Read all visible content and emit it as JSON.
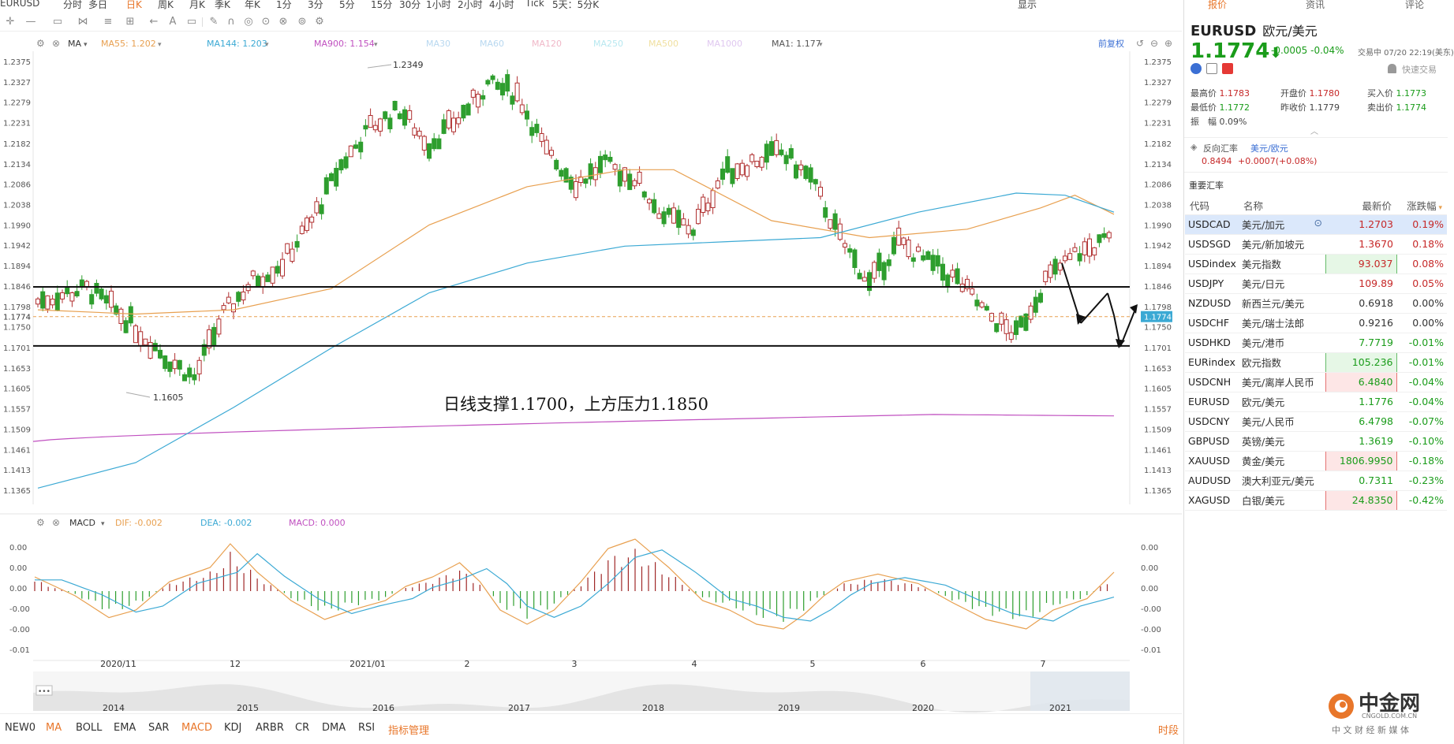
{
  "topbar": {
    "items": [
      "EURUSD",
      "分时",
      "多日",
      "日K",
      "周K",
      "月K",
      "季K",
      "年K",
      "1分",
      "3分",
      "5分",
      "15分",
      "30分",
      "1小时",
      "2小时",
      "4小时",
      "Tick",
      "5天：5分K"
    ],
    "right_items": [
      "显示",
      "报价",
      "资讯",
      "评论"
    ]
  },
  "chart": {
    "ma_label": "MA",
    "ma_legend": [
      {
        "label": "MA55: 1.202",
        "color": "#e8a050"
      },
      {
        "label": "MA144: 1.203",
        "color": "#3ba9d4"
      },
      {
        "label": "MA900: 1.154",
        "color": "#c050c0"
      },
      {
        "label": "MA30",
        "color": "#b8d8f0"
      },
      {
        "label": "MA60",
        "color": "#b8d8f0"
      },
      {
        "label": "MA120",
        "color": "#f0b8c8"
      },
      {
        "label": "MA250",
        "color": "#b8e8f0"
      },
      {
        "label": "MA500",
        "color": "#f0e0a0"
      },
      {
        "label": "MA1000",
        "color": "#e0c8f0"
      },
      {
        "label": "MA1: 1.177",
        "color": "#555555"
      }
    ],
    "adjust_label": "前复权",
    "price_ticks": [
      "1.2375",
      "1.2327",
      "1.2279",
      "1.2231",
      "1.2182",
      "1.2134",
      "1.2086",
      "1.2038",
      "1.1990",
      "1.1942",
      "1.1894",
      "1.1846",
      "1.1798",
      "1.1750",
      "1.1701",
      "1.1653",
      "1.1605",
      "1.1557",
      "1.1509",
      "1.1461",
      "1.1413",
      "1.1365"
    ],
    "current_price": "1.1774",
    "high_label": "1.2349",
    "low_label": "1.1605",
    "annotation": "日线支撑1.1700，上方压力1.1850",
    "macd_label": "MACD",
    "macd_legend": [
      {
        "label": "DIF: -0.002",
        "color": "#e8a050"
      },
      {
        "label": "DEA: -0.002",
        "color": "#3ba9d4"
      },
      {
        "label": "MACD: 0.000",
        "color": "#c050c0"
      }
    ],
    "macd_ticks": [
      "0.00",
      "0.00",
      "0.00",
      "-0.00",
      "-0.00",
      "-0.01"
    ],
    "time_labels": [
      "2020/11",
      "12",
      "2021/01",
      "2",
      "3",
      "4",
      "5",
      "6",
      "7"
    ],
    "year_labels": [
      "2014",
      "2015",
      "2016",
      "2017",
      "2018",
      "2019",
      "2020",
      "2021"
    ],
    "scroll_dots": "•••"
  },
  "indicators": {
    "items": [
      "NEW0",
      "MA",
      "BOLL",
      "EMA",
      "SAR",
      "MACD",
      "KDJ",
      "ARBR",
      "CR",
      "DMA",
      "RSI",
      "指标管理"
    ],
    "right": "时段"
  },
  "quote": {
    "symbol": "EURUSD",
    "name": "欧元/美元",
    "price": "1.1774",
    "arrow": "⬇",
    "change": "-0.0005 -0.04%",
    "trade_time": "交易中 07/20 22:19(美东)",
    "fast_trade": "快速交易",
    "stats": [
      {
        "label": "最高价",
        "value": "1.1783",
        "color": "red"
      },
      {
        "label": "开盘价",
        "value": "1.1780",
        "color": "red"
      },
      {
        "label": "买入价",
        "value": "1.1773",
        "color": "grn"
      },
      {
        "label": "最低价",
        "value": "1.1772",
        "color": "grn"
      },
      {
        "label": "昨收价",
        "value": "1.1779",
        "color": "none"
      },
      {
        "label": "卖出价",
        "value": "1.1774",
        "color": "grn"
      },
      {
        "label": "振　幅",
        "value": "0.09%",
        "color": "none"
      }
    ],
    "reverse_label": "反向汇率",
    "reverse_pair": "美元/欧元",
    "reverse_price": "0.8494",
    "reverse_change": "+0.0007(+0.08%)",
    "section_title": "重要汇率"
  },
  "rates_headers": {
    "code": "代码",
    "name": "名称",
    "last": "最新价",
    "pct": "涨跌幅"
  },
  "rates": [
    {
      "code": "USDCAD",
      "name": "美元/加元",
      "last": "1.2703",
      "pct": "0.19%",
      "dir": "up",
      "box": "none",
      "sel": true
    },
    {
      "code": "USDSGD",
      "name": "美元/新加坡元",
      "last": "1.3670",
      "pct": "0.18%",
      "dir": "up",
      "box": "none",
      "sel": false
    },
    {
      "code": "USDindex",
      "name": "美元指数",
      "last": "93.037",
      "pct": "0.08%",
      "dir": "up",
      "box": "g",
      "sel": false
    },
    {
      "code": "USDJPY",
      "name": "美元/日元",
      "last": "109.89",
      "pct": "0.05%",
      "dir": "up",
      "box": "none",
      "sel": false
    },
    {
      "code": "NZDUSD",
      "name": "新西兰元/美元",
      "last": "0.6918",
      "pct": "0.00%",
      "dir": "flat",
      "box": "none",
      "sel": false
    },
    {
      "code": "USDCHF",
      "name": "美元/瑞士法郎",
      "last": "0.9216",
      "pct": "0.00%",
      "dir": "flat",
      "box": "none",
      "sel": false
    },
    {
      "code": "USDHKD",
      "name": "美元/港币",
      "last": "7.7719",
      "pct": "-0.01%",
      "dir": "down",
      "box": "none",
      "sel": false
    },
    {
      "code": "EURindex",
      "name": "欧元指数",
      "last": "105.236",
      "pct": "-0.01%",
      "dir": "down",
      "box": "g",
      "sel": false
    },
    {
      "code": "USDCNH",
      "name": "美元/离岸人民币",
      "last": "6.4840",
      "pct": "-0.04%",
      "dir": "down",
      "box": "r",
      "sel": false
    },
    {
      "code": "EURUSD",
      "name": "欧元/美元",
      "last": "1.1776",
      "pct": "-0.04%",
      "dir": "down",
      "box": "none",
      "sel": false
    },
    {
      "code": "USDCNY",
      "name": "美元/人民币",
      "last": "6.4798",
      "pct": "-0.07%",
      "dir": "down",
      "box": "none",
      "sel": false
    },
    {
      "code": "GBPUSD",
      "name": "英镑/美元",
      "last": "1.3619",
      "pct": "-0.10%",
      "dir": "down",
      "box": "none",
      "sel": false
    },
    {
      "code": "XAUUSD",
      "name": "黄金/美元",
      "last": "1806.9950",
      "pct": "-0.18%",
      "dir": "down",
      "box": "r",
      "sel": false
    },
    {
      "code": "AUDUSD",
      "name": "澳大利亚元/美元",
      "last": "0.7311",
      "pct": "-0.23%",
      "dir": "down",
      "box": "none",
      "sel": false
    },
    {
      "code": "XAGUSD",
      "name": "白银/美元",
      "last": "24.8350",
      "pct": "-0.42%",
      "dir": "down",
      "box": "r",
      "sel": false
    }
  ],
  "logo": {
    "name": "中金网",
    "url": "CNGOLD.COM.CN",
    "slogan": "中 文 财 经 新 媒 体"
  }
}
